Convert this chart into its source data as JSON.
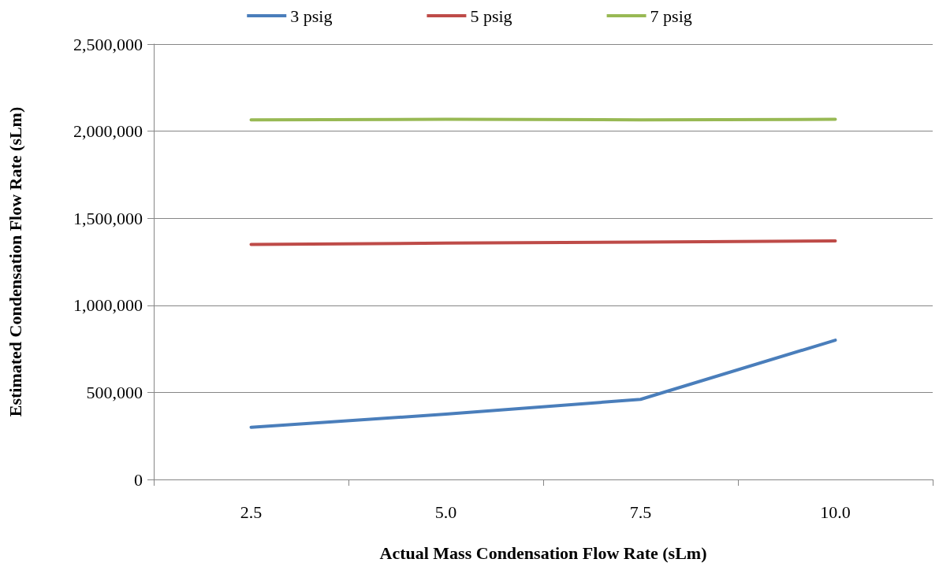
{
  "chart_data": {
    "type": "line",
    "xlabel": "Actual Mass Condensation Flow Rate (sLm)",
    "ylabel": "Estimated Condensation Flow Rate (sLm)",
    "categories": [
      "2.5",
      "5.0",
      "7.5",
      "10.0"
    ],
    "series": [
      {
        "name": "3 psig",
        "color": "#4a7ebb",
        "values": [
          300000,
          375000,
          460000,
          800000
        ]
      },
      {
        "name": "5 psig",
        "color": "#be4b48",
        "values": [
          1350000,
          1357000,
          1363000,
          1370000
        ]
      },
      {
        "name": "7 psig",
        "color": "#98b954",
        "values": [
          2065000,
          2068000,
          2065000,
          2068000
        ]
      }
    ],
    "ylim": [
      0,
      2500000
    ],
    "yticks": [
      {
        "value": 0,
        "label": "0"
      },
      {
        "value": 500000,
        "label": "500,000"
      },
      {
        "value": 1000000,
        "label": "1,000,000"
      },
      {
        "value": 1500000,
        "label": "1,500,000"
      },
      {
        "value": 2000000,
        "label": "2,000,000"
      },
      {
        "value": 2500000,
        "label": "2,500,000"
      }
    ],
    "grid": "y",
    "legend": "top",
    "marker": "none",
    "line_style": "solid"
  }
}
